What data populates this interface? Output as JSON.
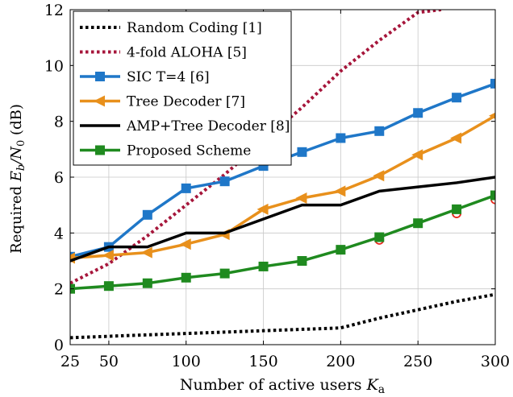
{
  "chart_data": {
    "type": "line",
    "xlabel": "Number of active users",
    "xlabel_symbol": "K",
    "xlabel_subscript": "a",
    "ylabel_prefix": "Required",
    "ylabel_symbol": "E",
    "ylabel_sub1": "b",
    "ylabel_slash": "/N",
    "ylabel_sub2": "0",
    "ylabel_unit": "(dB)",
    "xlim": [
      25,
      300
    ],
    "ylim": [
      0,
      12
    ],
    "xticks": [
      "25",
      "50",
      "100",
      "150",
      "200",
      "250",
      "300"
    ],
    "xtick_values": [
      25,
      50,
      100,
      150,
      200,
      250,
      300
    ],
    "yticks": [
      "0",
      "2",
      "4",
      "6",
      "8",
      "10",
      "12"
    ],
    "ytick_values": [
      0,
      2,
      4,
      6,
      8,
      10,
      12
    ],
    "grid": true,
    "legend_position": "top-left",
    "series": [
      {
        "name": "Random Coding [1]",
        "style": "dotted",
        "marker": "none",
        "color": "#000000",
        "x": [
          25,
          50,
          75,
          100,
          125,
          150,
          175,
          200,
          225,
          250,
          275,
          300
        ],
        "y": [
          0.25,
          0.3,
          0.35,
          0.4,
          0.45,
          0.5,
          0.55,
          0.6,
          0.95,
          1.25,
          1.55,
          1.8
        ]
      },
      {
        "name": "4-fold ALOHA [5]",
        "style": "dotted",
        "marker": "none",
        "color": "#a6163b",
        "x": [
          25,
          50,
          75,
          100,
          125,
          150,
          175,
          200,
          225,
          250,
          265
        ],
        "y": [
          2.2,
          2.9,
          3.9,
          5.0,
          6.1,
          7.3,
          8.5,
          9.8,
          10.9,
          11.9,
          12.0
        ]
      },
      {
        "name": "SIC T=4 [6]",
        "style": "solid",
        "marker": "square",
        "color": "#1f77c8",
        "x": [
          25,
          50,
          75,
          100,
          125,
          150,
          175,
          200,
          225,
          250,
          275,
          300
        ],
        "y": [
          3.15,
          3.5,
          4.65,
          5.6,
          5.85,
          6.4,
          6.9,
          7.4,
          7.65,
          8.3,
          8.85,
          9.35
        ]
      },
      {
        "name": "Tree Decoder [7]",
        "style": "solid",
        "marker": "triangle-left",
        "color": "#e8901c",
        "x": [
          25,
          50,
          75,
          100,
          125,
          150,
          175,
          200,
          225,
          250,
          275,
          300
        ],
        "y": [
          3.1,
          3.2,
          3.3,
          3.6,
          3.95,
          4.85,
          5.25,
          5.5,
          6.05,
          6.8,
          7.4,
          8.2
        ]
      },
      {
        "name": "AMP+Tree Decoder [8]",
        "style": "solid",
        "marker": "none",
        "color": "#000000",
        "x": [
          25,
          50,
          75,
          100,
          125,
          150,
          175,
          200,
          225,
          250,
          275,
          300
        ],
        "y": [
          3.0,
          3.5,
          3.5,
          4.0,
          4.0,
          4.5,
          5.0,
          5.0,
          5.5,
          5.65,
          5.8,
          6.0
        ]
      },
      {
        "name": "Proposed Scheme",
        "style": "solid",
        "marker": "square",
        "color": "#1f8a1f",
        "x": [
          25,
          50,
          75,
          100,
          125,
          150,
          175,
          200,
          225,
          250,
          275,
          300
        ],
        "y": [
          2.0,
          2.1,
          2.2,
          2.4,
          2.55,
          2.8,
          3.0,
          3.4,
          3.85,
          4.35,
          4.85,
          5.35
        ]
      }
    ],
    "extra_markers": {
      "marker": "circle",
      "color": "#e8261c",
      "x": [
        225,
        275,
        300
      ],
      "y": [
        3.75,
        4.7,
        5.2
      ]
    }
  }
}
